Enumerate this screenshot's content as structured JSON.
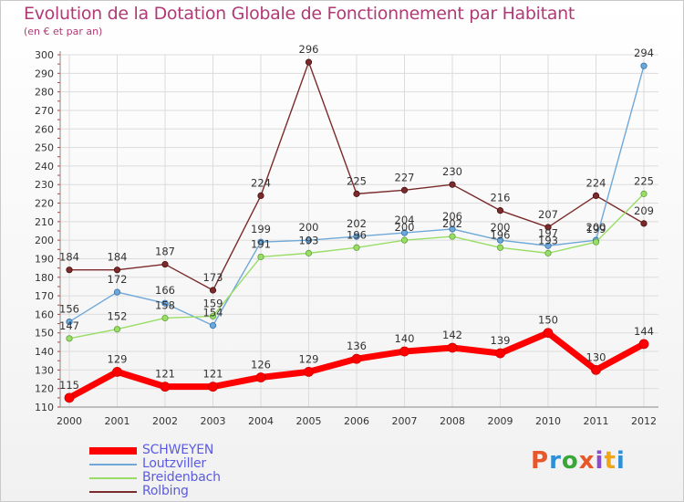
{
  "title": "Evolution de la Dotation Globale de Fonctionnement par Habitant",
  "subtitle": "(en € et par an)",
  "logo": {
    "text": "Proxiti",
    "colors": [
      "#e8572a",
      "#2e8fd6",
      "#3aa63a",
      "#e8572a",
      "#8b4cc9",
      "#f2a516",
      "#2e8fd6"
    ]
  },
  "chart_data": {
    "type": "line",
    "x": [
      "2000",
      "2001",
      "2002",
      "2003",
      "2004",
      "2005",
      "2006",
      "2007",
      "2008",
      "2009",
      "2010",
      "2011",
      "2012"
    ],
    "ylim": [
      110,
      300
    ],
    "yticks": [
      110,
      120,
      130,
      140,
      150,
      160,
      170,
      180,
      190,
      200,
      210,
      220,
      230,
      240,
      250,
      260,
      270,
      280,
      290,
      300
    ],
    "grid": true,
    "legend": "bottom-left",
    "series": [
      {
        "name": "SCHWEYEN",
        "color": "#ff0000",
        "values": [
          115,
          129,
          121,
          121,
          126,
          129,
          136,
          140,
          142,
          139,
          150,
          130,
          144
        ]
      },
      {
        "name": "Loutzviller",
        "color": "#6fa8d8",
        "values": [
          156,
          172,
          166,
          154,
          199,
          200,
          202,
          204,
          206,
          200,
          197,
          200,
          294
        ]
      },
      {
        "name": "Breidenbach",
        "color": "#99dd66",
        "values": [
          147,
          152,
          158,
          159,
          191,
          193,
          196,
          200,
          202,
          196,
          193,
          199,
          225
        ]
      },
      {
        "name": "Rolbing",
        "color": "#7b2b2b",
        "values": [
          184,
          184,
          187,
          173,
          224,
          296,
          225,
          227,
          230,
          216,
          207,
          224,
          209
        ]
      }
    ]
  }
}
